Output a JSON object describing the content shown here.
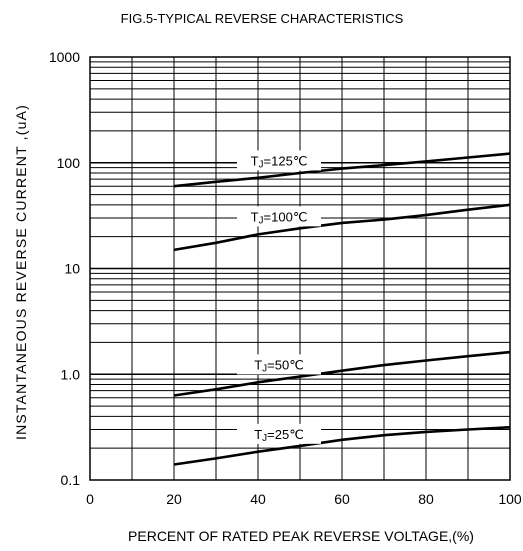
{
  "chart_data": {
    "type": "line",
    "title": "FIG.5-TYPICAL REVERSE CHARACTERISTICS",
    "xlabel": "PERCENT OF RATED PEAK REVERSE VOLTAGE,(%)",
    "ylabel": "INSTANTANEOUS REVERSE CURRENT ,(uA)",
    "x_scale": "linear",
    "y_scale": "log",
    "xlim": [
      0,
      100
    ],
    "ylim": [
      0.1,
      1000
    ],
    "x_ticks": [
      "0",
      "20",
      "40",
      "60",
      "80",
      "100"
    ],
    "x_tick_values": [
      0,
      20,
      40,
      60,
      80,
      100
    ],
    "y_ticks": [
      "0.1",
      "1.0",
      "10",
      "100",
      "1000"
    ],
    "y_tick_values": [
      0.1,
      1,
      10,
      100,
      1000
    ],
    "grid": true,
    "series": [
      {
        "name": "TJ=125℃",
        "label_main": "T",
        "label_sub": "J",
        "label_rest": "=125℃",
        "x": [
          20,
          30,
          40,
          50,
          60,
          70,
          80,
          90,
          100
        ],
        "y": [
          60,
          66,
          72,
          80,
          88,
          95,
          103,
          112,
          122
        ]
      },
      {
        "name": "TJ=100℃",
        "label_main": "T",
        "label_sub": "J",
        "label_rest": "=100℃",
        "x": [
          20,
          30,
          40,
          50,
          60,
          70,
          80,
          90,
          100
        ],
        "y": [
          15,
          17.5,
          21,
          24,
          27,
          29,
          32,
          36,
          40
        ]
      },
      {
        "name": "TJ=50℃",
        "label_main": "T",
        "label_sub": "J",
        "label_rest": "=50℃",
        "x": [
          20,
          30,
          40,
          50,
          60,
          70,
          80,
          90,
          100
        ],
        "y": [
          0.63,
          0.72,
          0.84,
          0.95,
          1.08,
          1.22,
          1.35,
          1.48,
          1.62
        ]
      },
      {
        "name": "TJ=25℃",
        "label_main": "T",
        "label_sub": "J",
        "label_rest": "=25℃",
        "x": [
          20,
          30,
          40,
          50,
          60,
          70,
          80,
          90,
          100
        ],
        "y": [
          0.14,
          0.16,
          0.185,
          0.21,
          0.24,
          0.265,
          0.285,
          0.3,
          0.315
        ]
      }
    ]
  }
}
